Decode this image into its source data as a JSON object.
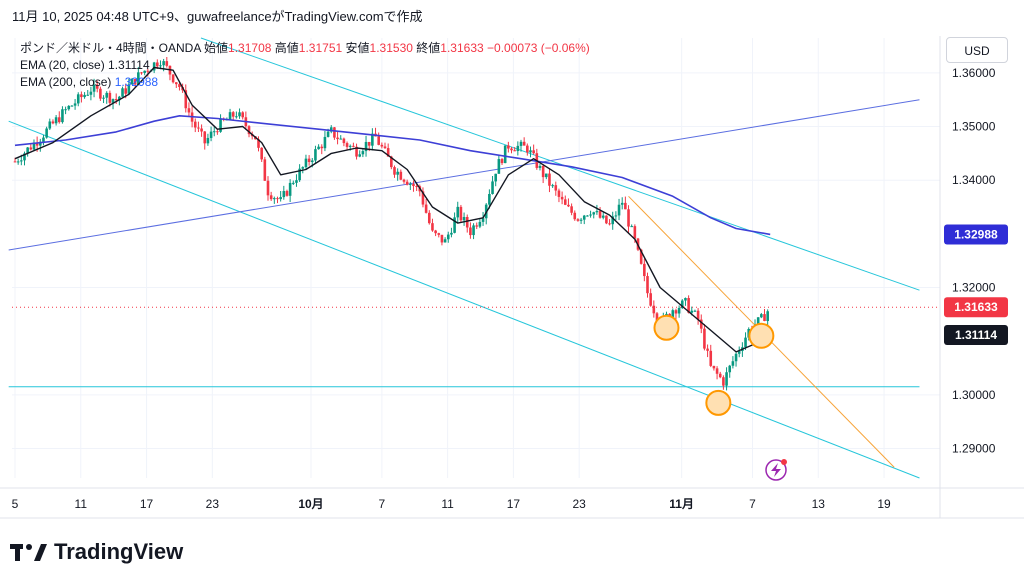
{
  "header": "11月 10, 2025 04:48 UTC+9、guwafreelanceがTradingView.comで作成",
  "legend": {
    "symbol": "ポンド／米ドル・4時間・OANDA",
    "open_label": "始値",
    "open_value": "1.31708",
    "high_label": "高値",
    "high_value": "1.31751",
    "low_label": "安値",
    "low_value": "1.31530",
    "close_label": "終値",
    "close_value": "1.31633",
    "change": "−0.00073 (−0.06%)",
    "ema20_label": "EMA (20, close)",
    "ema20_value": "1.31114",
    "ema200_label": "EMA (200, close)",
    "ema200_value": "1.32988"
  },
  "currency_button": "USD",
  "brand": "TradingView",
  "colors": {
    "up": "#089981",
    "down": "#f23645",
    "ema20": "#131722",
    "ema200": "#3d3fd6",
    "trendline_cyan": "#26c6da",
    "trendline_blue": "#5b6ee1",
    "trendline_orange": "#f7a43a",
    "last_price": "#f23645",
    "circle": "#ff9800"
  },
  "chart_data": {
    "type": "candlestick",
    "y_ticks": [
      "1.36000",
      "1.35000",
      "1.34000",
      "1.32000",
      "1.30000",
      "1.29000"
    ],
    "ylim": [
      1.2845,
      1.3665
    ],
    "x_ticks": [
      {
        "label": "5",
        "pos": 0.0
      },
      {
        "label": "11",
        "pos": 5.2
      },
      {
        "label": "17",
        "pos": 10.4
      },
      {
        "label": "23",
        "pos": 15.6
      },
      {
        "label": "10月",
        "pos": 23.4
      },
      {
        "label": "7",
        "pos": 29.0
      },
      {
        "label": "11",
        "pos": 34.2
      },
      {
        "label": "17",
        "pos": 39.4
      },
      {
        "label": "23",
        "pos": 44.6
      },
      {
        "label": "11月",
        "pos": 52.7
      },
      {
        "label": "7",
        "pos": 58.3
      },
      {
        "label": "13",
        "pos": 63.5
      },
      {
        "label": "19",
        "pos": 68.7
      }
    ],
    "price_badges": [
      {
        "value": "1.32988",
        "role": "ema200"
      },
      {
        "value": "1.31633",
        "role": "last"
      },
      {
        "value": "1.31114",
        "role": "ema20"
      }
    ],
    "last_price": 1.31633,
    "close_path": [
      [
        0,
        1.3435
      ],
      [
        2,
        1.348
      ],
      [
        4,
        1.353
      ],
      [
        6,
        1.357
      ],
      [
        8,
        1.355
      ],
      [
        10,
        1.36
      ],
      [
        11.5,
        1.3625
      ],
      [
        13,
        1.3575
      ],
      [
        14,
        1.351
      ],
      [
        15,
        1.347
      ],
      [
        16,
        1.35
      ],
      [
        17.5,
        1.3525
      ],
      [
        19,
        1.348
      ],
      [
        20,
        1.338
      ],
      [
        21,
        1.336
      ],
      [
        22,
        1.34
      ],
      [
        23,
        1.343
      ],
      [
        24,
        1.346
      ],
      [
        25,
        1.349
      ],
      [
        26,
        1.347
      ],
      [
        27,
        1.3455
      ],
      [
        28.5,
        1.348
      ],
      [
        30,
        1.342
      ],
      [
        31,
        1.34
      ],
      [
        32,
        1.338
      ],
      [
        33,
        1.33
      ],
      [
        34,
        1.3285
      ],
      [
        35,
        1.334
      ],
      [
        36,
        1.3305
      ],
      [
        37,
        1.334
      ],
      [
        38,
        1.342
      ],
      [
        39,
        1.3465
      ],
      [
        40.5,
        1.346
      ],
      [
        41.5,
        1.342
      ],
      [
        42.5,
        1.3385
      ],
      [
        43.5,
        1.335
      ],
      [
        44.5,
        1.333
      ],
      [
        45.5,
        1.3345
      ],
      [
        47,
        1.3315
      ],
      [
        48,
        1.336
      ],
      [
        49,
        1.3285
      ],
      [
        50,
        1.319
      ],
      [
        51,
        1.313
      ],
      [
        52,
        1.316
      ],
      [
        53,
        1.317
      ],
      [
        54,
        1.314
      ],
      [
        55,
        1.305
      ],
      [
        56,
        1.3025
      ],
      [
        57,
        1.3075
      ],
      [
        58,
        1.312
      ],
      [
        59,
        1.314
      ],
      [
        59.7,
        1.3163
      ]
    ],
    "ema20_path": [
      [
        0,
        1.344
      ],
      [
        3,
        1.347
      ],
      [
        6,
        1.352
      ],
      [
        9,
        1.356
      ],
      [
        11,
        1.361
      ],
      [
        12.5,
        1.3605
      ],
      [
        14,
        1.354
      ],
      [
        16,
        1.3495
      ],
      [
        18,
        1.35
      ],
      [
        19.5,
        1.347
      ],
      [
        21,
        1.341
      ],
      [
        23,
        1.342
      ],
      [
        25,
        1.345
      ],
      [
        27,
        1.346
      ],
      [
        29,
        1.3455
      ],
      [
        31,
        1.342
      ],
      [
        33,
        1.335
      ],
      [
        35,
        1.332
      ],
      [
        37,
        1.333
      ],
      [
        39,
        1.341
      ],
      [
        41,
        1.344
      ],
      [
        43,
        1.341
      ],
      [
        45,
        1.336
      ],
      [
        47,
        1.3335
      ],
      [
        49,
        1.329
      ],
      [
        51,
        1.32
      ],
      [
        53,
        1.316
      ],
      [
        55,
        1.312
      ],
      [
        57,
        1.308
      ],
      [
        58.5,
        1.3095
      ],
      [
        59.7,
        1.3111
      ]
    ],
    "ema200_path": [
      [
        0,
        1.3465
      ],
      [
        4,
        1.3475
      ],
      [
        8,
        1.349
      ],
      [
        11,
        1.351
      ],
      [
        13,
        1.352
      ],
      [
        16,
        1.3515
      ],
      [
        20,
        1.3505
      ],
      [
        24,
        1.3495
      ],
      [
        28,
        1.3485
      ],
      [
        32,
        1.3475
      ],
      [
        36,
        1.3455
      ],
      [
        40,
        1.344
      ],
      [
        44,
        1.3425
      ],
      [
        48,
        1.3405
      ],
      [
        52,
        1.337
      ],
      [
        55,
        1.333
      ],
      [
        57,
        1.331
      ],
      [
        59.7,
        1.3299
      ]
    ],
    "trendlines": [
      {
        "color": "cyan",
        "from": [
          -0.5,
          1.351
        ],
        "to": [
          71.5,
          1.2845
        ]
      },
      {
        "color": "cyan",
        "from": [
          14.7,
          1.3665
        ],
        "to": [
          71.5,
          1.3195
        ]
      },
      {
        "color": "blue",
        "from": [
          -0.5,
          1.327
        ],
        "to": [
          71.5,
          1.355
        ]
      },
      {
        "color": "cyan",
        "from": [
          -0.5,
          1.3015
        ],
        "to": [
          71.5,
          1.3015
        ]
      },
      {
        "color": "orange",
        "from": [
          48.5,
          1.337
        ],
        "to": [
          69.5,
          1.2865
        ]
      }
    ],
    "markers": [
      {
        "type": "circle",
        "at": [
          51.5,
          1.3125
        ]
      },
      {
        "type": "circle",
        "at": [
          55.6,
          1.2985
        ]
      },
      {
        "type": "circle",
        "at": [
          59.0,
          1.311
        ]
      }
    ]
  }
}
